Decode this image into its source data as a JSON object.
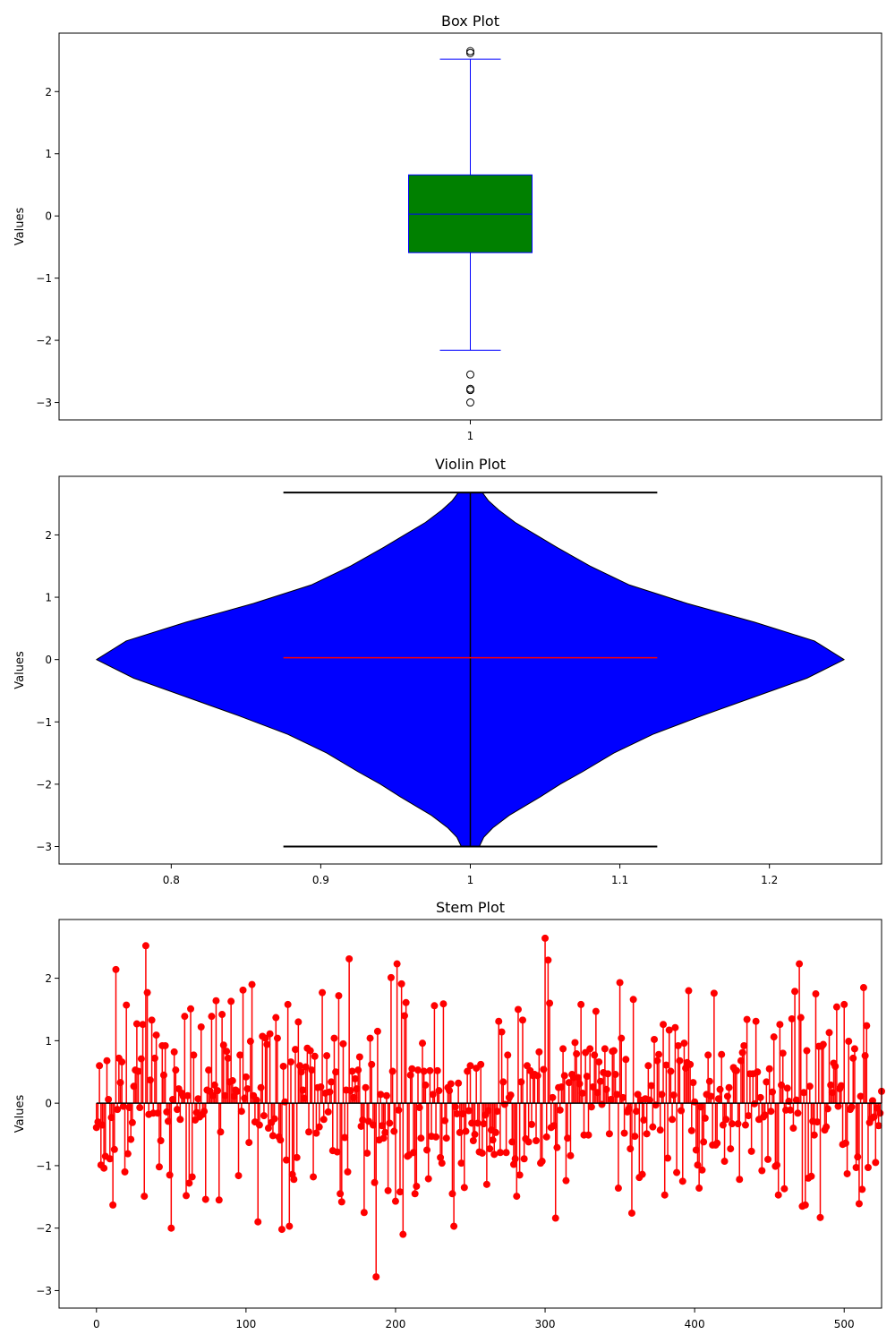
{
  "chart_data": [
    {
      "type": "box",
      "title": "Box Plot",
      "ylabel": "Values",
      "xticks": [
        "1"
      ],
      "ylim": [
        -3.28,
        2.94
      ],
      "yticks": [
        -3,
        -2,
        -1,
        0,
        1,
        2
      ],
      "box": {
        "position": 1,
        "whisker_low": -2.16,
        "q1": -0.59,
        "median": 0.03,
        "q3": 0.66,
        "whisker_high": 2.52,
        "outliers": [
          2.62,
          2.65,
          -2.55,
          -2.78,
          -2.8,
          -3.0
        ],
        "box_color": "#008000",
        "line_color": "#0000ff"
      }
    },
    {
      "type": "violin",
      "title": "Violin Plot",
      "ylabel": "Values",
      "xlim": [
        0.725,
        1.275
      ],
      "xticks": [
        0.8,
        0.9,
        1.0,
        1.1,
        1.2
      ],
      "ylim": [
        -3.28,
        2.94
      ],
      "yticks": [
        -3,
        -2,
        -1,
        0,
        1,
        2
      ],
      "violin": {
        "position": 1,
        "min": -3.0,
        "max": 2.68,
        "median": 0.03,
        "fill_color": "#0000ff",
        "median_color": "#ff0000",
        "extrema_color": "#000000",
        "profile_y": [
          -3.0,
          -2.95,
          -2.85,
          -2.7,
          -2.5,
          -2.2,
          -2.0,
          -1.8,
          -1.5,
          -1.2,
          -0.9,
          -0.6,
          -0.3,
          0.0,
          0.3,
          0.6,
          0.9,
          1.2,
          1.5,
          1.8,
          2.0,
          2.2,
          2.4,
          2.55,
          2.68
        ],
        "profile_halfwidth": [
          0.006,
          0.007,
          0.009,
          0.015,
          0.026,
          0.047,
          0.06,
          0.075,
          0.096,
          0.122,
          0.155,
          0.19,
          0.225,
          0.25,
          0.23,
          0.19,
          0.145,
          0.106,
          0.08,
          0.058,
          0.044,
          0.03,
          0.019,
          0.012,
          0.008
        ]
      }
    },
    {
      "type": "stem",
      "title": "Stem Plot",
      "ylabel": "Values",
      "xlim": [
        -25,
        525
      ],
      "xticks": [
        0,
        100,
        200,
        300,
        400,
        500
      ],
      "ylim": [
        -3.28,
        2.94
      ],
      "yticks": [
        -3,
        -2,
        -1,
        0,
        1,
        2
      ],
      "baseline": 0,
      "marker_color": "#ff0000",
      "baseline_color": "#000000",
      "x_start": 0,
      "values": [
        -0.39,
        -0.3,
        0.6,
        -0.99,
        -0.35,
        -1.04,
        -0.85,
        0.68,
        0.06,
        -0.89,
        -0.23,
        -1.63,
        -0.74,
        2.14,
        -0.1,
        0.72,
        0.33,
        0.66,
        -0.05,
        -1.1,
        1.57,
        -0.81,
        -0.07,
        -0.58,
        -0.31,
        0.27,
        0.53,
        1.27,
        0.51,
        -0.07,
        0.71,
        1.26,
        -1.49,
        2.52,
        1.77,
        -0.18,
        0.37,
        1.33,
        -0.16,
        0.72,
        1.09,
        -0.16,
        -1.02,
        -0.6,
        0.92,
        0.45,
        0.92,
        -0.14,
        -0.29,
        -1.15,
        -2.0,
        0.06,
        0.82,
        0.53,
        -0.1,
        0.23,
        -0.26,
        0.16,
        0.11,
        1.39,
        -1.48,
        0.12,
        -1.28,
        1.51,
        -1.18,
        0.77,
        -0.27,
        -0.15,
        0.07,
        -0.22,
        1.22,
        -0.18,
        -0.13,
        -1.54,
        0.21,
        0.53,
        0.19,
        1.39,
        0.12,
        0.29,
        1.64,
        0.2,
        -1.55,
        -0.46,
        1.42,
        0.93,
        0.12,
        0.83,
        0.72,
        0.34,
        1.63,
        0.36,
        0.11,
        0.21,
        0.19,
        -1.16,
        0.77,
        -0.13,
        1.81,
        0.08,
        0.42,
        0.23,
        -0.63,
        0.99,
        1.9,
        0.12,
        -0.3,
        0.05,
        -1.9,
        -0.35,
        0.25,
        1.07,
        -0.2,
        1.04,
        0.94,
        -0.4,
        1.11,
        -0.31,
        -0.52,
        -0.25,
        1.37,
        1.04,
        -0.54,
        -0.59,
        -2.02,
        0.59,
        0.02,
        -0.91,
        1.58,
        -1.97,
        0.66,
        -1.14,
        -1.22,
        0.86,
        -0.87,
        1.3,
        0.6,
        0.5,
        0.21,
        0.08,
        0.58,
        0.88,
        -0.46,
        0.84,
        0.53,
        -1.18,
        0.75,
        -0.48,
        0.25,
        -0.38,
        0.26,
        1.77,
        -0.26,
        0.16,
        0.76,
        -0.14,
        0.18,
        0.34,
        -0.76,
        1.04,
        0.5,
        -0.78,
        1.72,
        -1.45,
        -1.58,
        0.95,
        -0.55,
        0.21,
        -1.1,
        2.31,
        0.2,
        0.51,
        0.09,
        0.39,
        0.23,
        0.53,
        0.74,
        -0.37,
        -0.27,
        -1.75,
        0.25,
        -0.8,
        -0.29,
        1.04,
        0.62,
        -0.35,
        -1.27,
        -2.78,
        1.15,
        -0.59,
        0.14,
        -0.36,
        -0.56,
        -0.47,
        0.12,
        -1.4,
        -0.32,
        2.01,
        0.51,
        -0.45,
        -1.57,
        2.23,
        -0.11,
        -1.42,
        1.91,
        -2.1,
        1.4,
        1.61,
        -0.85,
        -0.83,
        0.45,
        0.55,
        -0.79,
        -1.45,
        -1.33,
        0.53,
        -0.07,
        -0.56,
        0.96,
        0.51,
        0.29,
        -0.75,
        -1.21,
        0.52,
        -0.53,
        0.14,
        1.56,
        -0.54,
        0.52,
        0.2,
        -0.87,
        -0.96,
        1.59,
        -0.28,
        -0.56,
        0.25,
        0.2,
        0.31,
        -1.45,
        -1.97,
        -0.06,
        -0.17,
        0.32,
        -0.47,
        -0.96,
        -0.17,
        -1.35,
        -0.45,
        0.51,
        -0.12,
        0.6,
        -0.32,
        -0.6,
        -0.5,
        0.56,
        -0.32,
        -0.78,
        0.62,
        -0.8,
        -0.33,
        -0.19,
        -1.3,
        -0.12,
        -0.73,
        -0.43,
        -0.59,
        -0.82,
        -0.47,
        -0.13,
        1.31,
        -0.79,
        1.14,
        0.34,
        -0.02,
        -0.79,
        0.77,
        0.09,
        0.13,
        -0.62,
        -0.98,
        -0.89,
        -1.49,
        1.5,
        -1.15,
        0.34,
        1.33,
        -0.89,
        -0.57,
        0.6,
        -0.62,
        0.52,
        -0.34,
        0.44,
        0.46,
        -0.6,
        0.44,
        0.82,
        -0.96,
        -0.93,
        0.54,
        2.64,
        -0.54,
        2.29,
        1.6,
        -0.39,
        0.09,
        -0.36,
        -1.84,
        -0.71,
        0.25,
        -0.11,
        0.26,
        0.87,
        0.44,
        -1.24,
        -0.56,
        0.33,
        -0.84,
        0.46,
        0.41,
        0.97,
        0.79,
        0.41,
        0.31,
        1.58,
        0.16,
        -0.51,
        0.81,
        0.43,
        -0.51,
        0.87,
        -0.06,
        0.26,
        0.77,
        1.47,
        0.17,
        0.66,
        0.35,
        -0.02,
        0.49,
        0.87,
        0.22,
        0.47,
        -0.49,
        0.06,
        0.83,
        0.84,
        0.46,
        0.14,
        -1.36,
        1.93,
        1.04,
        0.09,
        -0.48,
        0.7,
        -0.14,
        -0.09,
        -0.73,
        -1.76,
        1.66,
        -0.53,
        -0.13,
        0.14,
        -1.19,
        0.05,
        -1.14,
        -0.27,
        0.07,
        -0.49,
        0.6,
        0.05,
        0.28,
        -0.38,
        1.02,
        -0.03,
        0.68,
        0.78,
        -0.43,
        0.14,
        1.26,
        -1.47,
        0.61,
        -0.88,
        1.17,
        0.51,
        -0.26,
        0.13,
        1.21,
        -1.11,
        0.92,
        0.68,
        -0.12,
        -1.25,
        0.96,
        0.56,
        0.65,
        1.8,
        0.62,
        -0.44,
        0.33,
        0.02,
        -0.75,
        -0.99,
        -1.36,
        -0.06,
        -1.07,
        -0.62,
        -0.24,
        0.14,
        0.77,
        0.35,
        0.11,
        -0.67,
        1.76,
        -0.67,
        -0.64,
        0.07,
        0.22,
        0.78,
        -0.35,
        -0.93,
        -0.26,
        0.11,
        0.25,
        -0.73,
        -0.33,
        0.57,
        0.53,
        0.52,
        -0.33,
        -1.22,
        0.68,
        0.81,
        0.92,
        -0.35,
        1.34,
        -0.2,
        0.47,
        -0.77,
        0.47,
        -0.01,
        1.31,
        0.5,
        -0.26,
        0.09,
        -1.08,
        -0.22,
        -0.19,
        0.34,
        -0.9,
        0.55,
        -0.13,
        0.18,
        1.06,
        -1.01,
        -0.99,
        -1.47,
        1.26,
        0.29,
        0.8,
        -1.37,
        -0.11,
        0.24,
        0.03,
        -0.11,
        1.35,
        -0.4,
        1.79,
        0.05,
        -0.16,
        2.23,
        1.37,
        -1.65,
        0.17,
        -1.63,
        0.84,
        -1.2,
        0.27,
        -1.17,
        -0.29,
        -0.51,
        1.75,
        -0.3,
        0.91,
        -1.83,
        0.91,
        0.94,
        -0.43,
        -0.38,
        -0.09,
        1.13,
        0.29,
        0.17,
        0.64,
        0.59,
        1.54,
        -0.05,
        0.23,
        0.28,
        -0.66,
        1.58,
        -0.64,
        -1.13,
        0.99,
        -0.1,
        -0.06,
        0.72,
        0.87,
        -1.03,
        -0.86,
        -1.61,
        0.11,
        -1.38,
        1.85,
        0.76,
        1.24,
        -1.03,
        -0.31,
        -0.25,
        0.04,
        -0.22,
        -0.95,
        -0.08,
        -0.36,
        -0.16,
        0.19
      ]
    }
  ]
}
